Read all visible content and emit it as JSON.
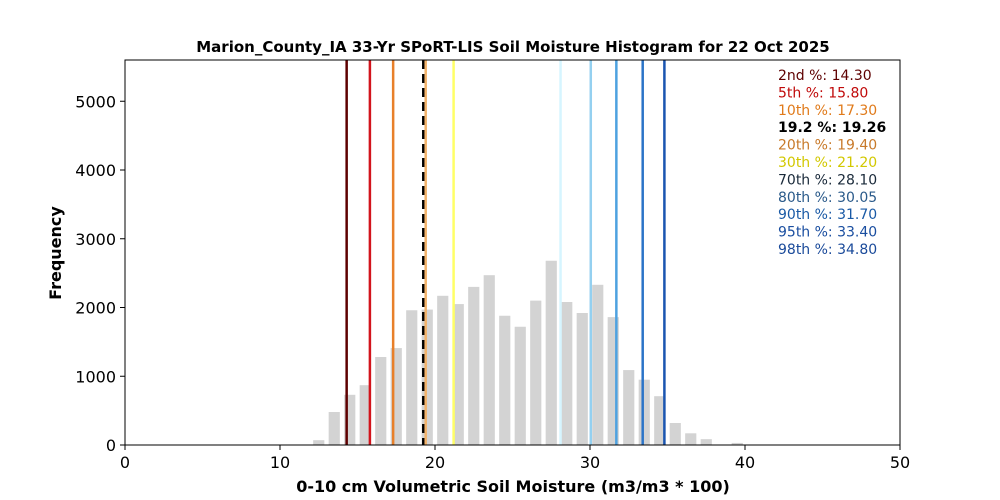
{
  "chart_data": {
    "type": "bar",
    "title": "Marion_County_IA 33-Yr SPoRT-LIS Soil Moisture Histogram for 22 Oct 2025",
    "xlabel": "0-10 cm Volumetric Soil Moisture (m3/m3 * 100)",
    "ylabel": "Frequency",
    "xlim": [
      0,
      50
    ],
    "ylim": [
      0,
      5600
    ],
    "x_ticks": [
      "0",
      "10",
      "20",
      "30",
      "40",
      "50"
    ],
    "y_ticks": [
      "0",
      "1000",
      "2000",
      "3000",
      "4000",
      "5000"
    ],
    "x_tick_values": [
      0,
      10,
      20,
      30,
      40,
      50
    ],
    "y_tick_values": [
      0,
      1000,
      2000,
      3000,
      4000,
      5000
    ],
    "grid": false,
    "bar_color": "#d3d3d3",
    "bin_width": 1.0,
    "bins": [
      {
        "x": 12.5,
        "value": 70
      },
      {
        "x": 13.5,
        "value": 480
      },
      {
        "x": 14.5,
        "value": 730
      },
      {
        "x": 15.5,
        "value": 870
      },
      {
        "x": 16.5,
        "value": 1280
      },
      {
        "x": 17.5,
        "value": 1410
      },
      {
        "x": 18.5,
        "value": 1960
      },
      {
        "x": 19.5,
        "value": 1970
      },
      {
        "x": 20.5,
        "value": 2170
      },
      {
        "x": 21.5,
        "value": 2050
      },
      {
        "x": 22.5,
        "value": 2300
      },
      {
        "x": 23.5,
        "value": 2470
      },
      {
        "x": 24.5,
        "value": 1880
      },
      {
        "x": 25.5,
        "value": 1720
      },
      {
        "x": 26.5,
        "value": 2100
      },
      {
        "x": 27.5,
        "value": 2680
      },
      {
        "x": 28.5,
        "value": 2080
      },
      {
        "x": 29.5,
        "value": 1920
      },
      {
        "x": 30.5,
        "value": 2330
      },
      {
        "x": 31.5,
        "value": 1860
      },
      {
        "x": 32.5,
        "value": 1090
      },
      {
        "x": 33.5,
        "value": 950
      },
      {
        "x": 34.5,
        "value": 710
      },
      {
        "x": 35.5,
        "value": 320
      },
      {
        "x": 36.5,
        "value": 170
      },
      {
        "x": 37.5,
        "value": 85
      },
      {
        "x": 39.5,
        "value": 30
      }
    ],
    "percentile_lines": [
      {
        "label": "2nd %: 14.30",
        "x": 14.3,
        "color": "#5e0000",
        "dashed": false
      },
      {
        "label": "5th %: 15.80",
        "x": 15.8,
        "color": "#d2141c",
        "dashed": false
      },
      {
        "label": "10th %: 17.30",
        "x": 17.3,
        "color": "#e8802a",
        "dashed": false
      },
      {
        "label": "19.2 %: 19.26",
        "x": 19.26,
        "color": "#000000",
        "dashed": true
      },
      {
        "label": "20th %: 19.40",
        "x": 19.4,
        "color": "#f2b36b",
        "dashed": false
      },
      {
        "label": "30th %: 21.20",
        "x": 21.2,
        "color": "#ffff66",
        "dashed": false
      },
      {
        "label": "70th %: 28.10",
        "x": 28.1,
        "color": "#d6f5ff",
        "dashed": false
      },
      {
        "label": "80th %: 30.05",
        "x": 30.05,
        "color": "#94d0f0",
        "dashed": false
      },
      {
        "label": "90th %: 31.70",
        "x": 31.7,
        "color": "#4ea2e0",
        "dashed": false
      },
      {
        "label": "95th %: 33.40",
        "x": 33.4,
        "color": "#2b74c8",
        "dashed": false
      },
      {
        "label": "98th %: 34.80",
        "x": 34.8,
        "color": "#1a55b0",
        "dashed": false
      }
    ],
    "label_colors": [
      "#5e0000",
      "#c00a0a",
      "#e07a1a",
      "#000000",
      "#c87a2a",
      "#d2c800",
      "#1a2a3a",
      "#2a5a8a",
      "#1a5aa6",
      "#1a4ea0",
      "#1a4a9a"
    ]
  }
}
